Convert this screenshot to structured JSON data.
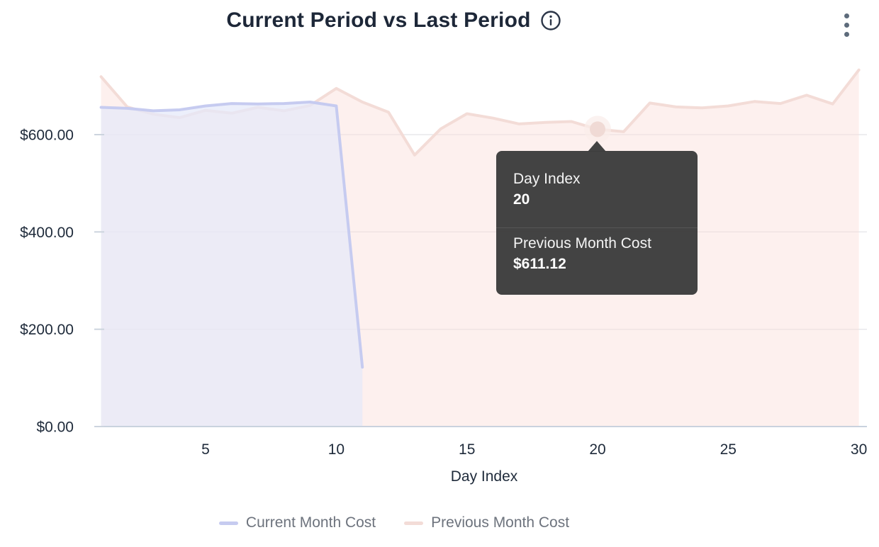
{
  "header": {
    "title": "Current Period vs Last Period",
    "info_icon": "info-circle-icon",
    "menu_icon": "kebab-menu-icon"
  },
  "chart_data": {
    "type": "area",
    "title": "Current Period vs Last Period",
    "xlabel": "Day Index",
    "ylabel": "",
    "x_ticks": [
      5,
      10,
      15,
      20,
      25,
      30
    ],
    "y_ticks": [
      {
        "label": "$0.00",
        "value": 0
      },
      {
        "label": "$200.00",
        "value": 200
      },
      {
        "label": "$400.00",
        "value": 400
      },
      {
        "label": "$600.00",
        "value": 600
      }
    ],
    "xlim": [
      1,
      30
    ],
    "ylim": [
      0,
      760
    ],
    "grid": true,
    "legend_position": "bottom",
    "series": [
      {
        "name": "Current Month Cost",
        "x_start": 1,
        "values": [
          656,
          654,
          649,
          651,
          659,
          664,
          663,
          664,
          667,
          659,
          122
        ],
        "line_color": "#c6cbf0",
        "fill_color": "#e5e9f9",
        "fill_opacity": 0.72
      },
      {
        "name": "Previous Month Cost",
        "x_start": 1,
        "values": [
          719,
          657,
          642,
          635,
          650,
          644,
          656,
          649,
          660,
          695,
          667,
          646,
          558,
          612,
          643,
          634,
          622,
          625,
          627,
          611.12,
          606,
          665,
          657,
          655,
          659,
          668,
          664,
          681,
          663,
          733
        ],
        "line_color": "#f3dcd7",
        "fill_color": "#fbded9",
        "fill_opacity": 0.45
      }
    ],
    "highlight": {
      "series": "Previous Month Cost",
      "x": 20,
      "y": 611.12,
      "dot_color": "#f0dad5",
      "halo_color": "#faedea"
    }
  },
  "tooltip": {
    "x_label": "Day Index",
    "x_value": "20",
    "series_label": "Previous Month Cost",
    "series_value": "$611.12"
  },
  "legend": {
    "items": [
      {
        "label": "Current Month Cost",
        "color": "#c6cbf0"
      },
      {
        "label": "Previous Month Cost",
        "color": "#f3dcd7"
      }
    ]
  },
  "colors": {
    "title_text": "#1d2738",
    "axis_label": "#1e2a3a",
    "legend_text": "#6d737d",
    "grid_line": "#e8e8ec",
    "axis_line": "#c9d2de",
    "tick_mark": "#ccd4de",
    "tooltip_bg": "#3d3d3d",
    "menu_icon": "#5d6b7b"
  }
}
